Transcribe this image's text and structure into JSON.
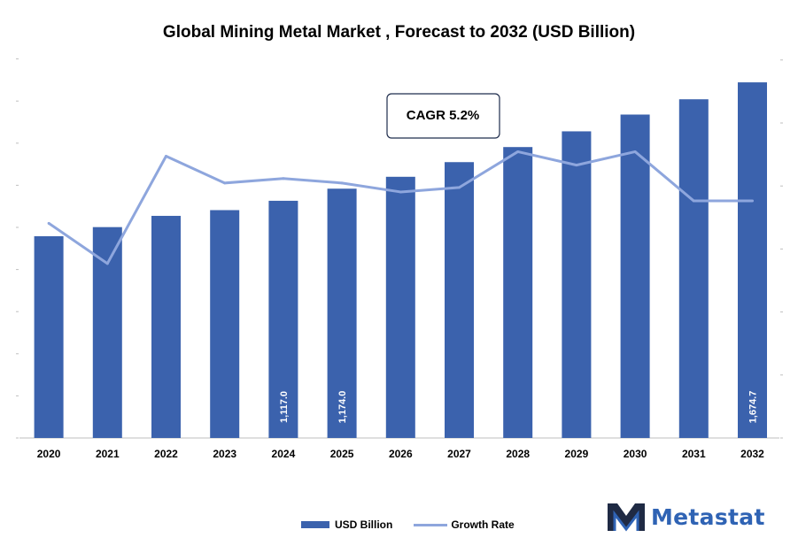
{
  "chart_data": {
    "type": "bar",
    "title": "Global Mining Metal Market , Forecast to 2032 (USD Billion)",
    "categories": [
      "2020",
      "2021",
      "2022",
      "2023",
      "2024",
      "2025",
      "2026",
      "2027",
      "2028",
      "2029",
      "2030",
      "2031",
      "2032"
    ],
    "series": [
      {
        "name": "USD Billion",
        "type": "bar",
        "color": "#3b62ad",
        "values": [
          950,
          993,
          1046,
          1073,
          1117.0,
          1174.0,
          1230,
          1299,
          1370,
          1444,
          1523,
          1595,
          1674.7
        ]
      },
      {
        "name": "Growth Rate",
        "type": "line",
        "color": "#8ea6dd",
        "values": [
          4.8,
          3.9,
          6.3,
          5.7,
          5.8,
          5.7,
          5.5,
          5.6,
          6.4,
          6.1,
          6.4,
          5.3,
          5.3
        ]
      }
    ],
    "data_labels": {
      "4": "1,117.0",
      "5": "1,174.0",
      "12": "1,674.7"
    },
    "annotation": "CAGR 5.2%",
    "ylim": [
      0,
      1700
    ],
    "y2lim": [
      0,
      9
    ],
    "legend_position": "bottom"
  },
  "brand": {
    "name": "Metastat"
  }
}
